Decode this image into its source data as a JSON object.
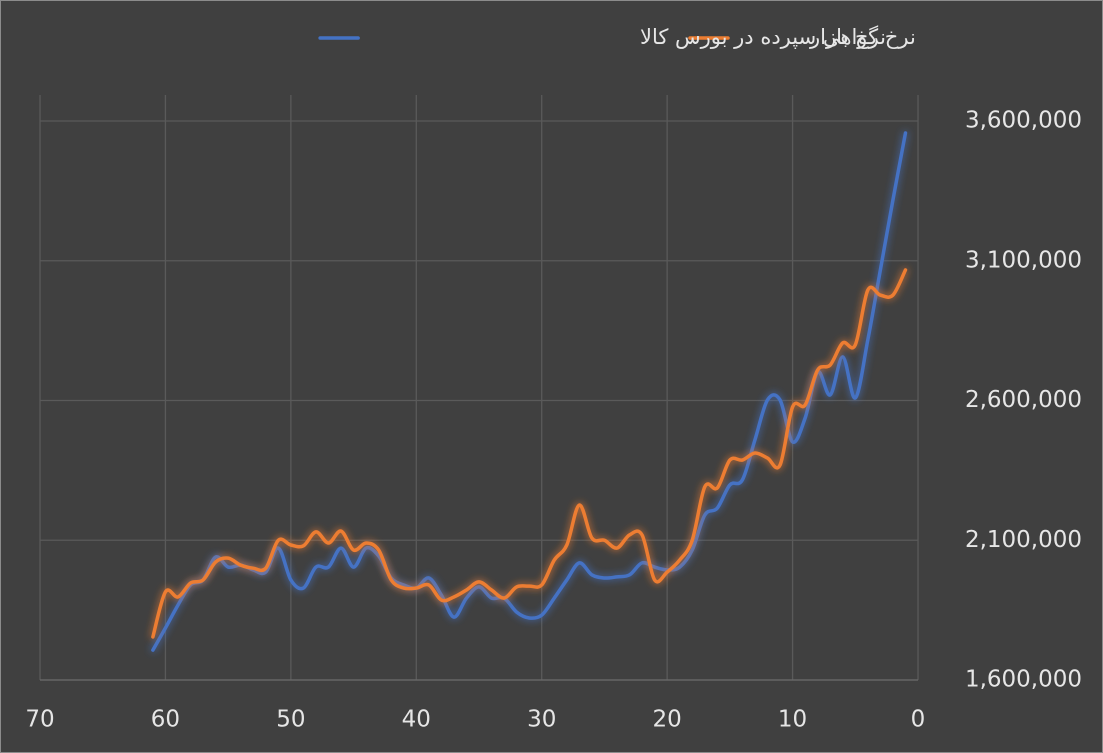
{
  "chart_data": {
    "type": "line",
    "x": [
      61,
      60,
      59,
      58,
      57,
      56,
      55,
      54,
      53,
      52,
      51,
      50,
      49,
      48,
      47,
      46,
      45,
      44,
      43,
      42,
      41,
      40,
      39,
      38,
      37,
      36,
      35,
      34,
      33,
      32,
      31,
      30,
      29,
      28,
      27,
      26,
      25,
      24,
      23,
      22,
      21,
      20,
      19,
      18,
      17,
      16,
      15,
      14,
      13,
      12,
      11,
      10,
      9,
      8,
      7,
      6,
      5,
      4,
      3,
      2,
      1
    ],
    "series": [
      {
        "name": "نرخ بازار",
        "color": "#ed7d31",
        "values": [
          1754000,
          1915000,
          1897000,
          1947000,
          1958000,
          2022000,
          2036000,
          2011000,
          2000000,
          2000000,
          2100000,
          2083000,
          2080000,
          2130000,
          2090000,
          2133000,
          2065000,
          2090000,
          2065000,
          1958000,
          1929000,
          1929000,
          1940000,
          1886000,
          1897000,
          1922000,
          1951000,
          1922000,
          1893000,
          1933000,
          1936000,
          1940000,
          2029000,
          2083000,
          2226000,
          2108000,
          2100000,
          2072000,
          2119000,
          2119000,
          1958000,
          1986000,
          2029000,
          2100000,
          2291000,
          2287000,
          2387000,
          2387000,
          2412000,
          2394000,
          2369000,
          2577000,
          2584000,
          2709000,
          2727000,
          2806000,
          2799000,
          2995000,
          2977000,
          2977000,
          3067000
        ]
      },
      {
        "name": "نرخ گواهی سپرده در بورس کالا",
        "color": "#4472c4",
        "values": [
          1707000,
          1786000,
          1868000,
          1940000,
          1958000,
          2040000,
          2004000,
          2011000,
          1994000,
          1986000,
          2072000,
          1958000,
          1929000,
          2004000,
          2004000,
          2072000,
          2004000,
          2072000,
          2044000,
          1965000,
          1940000,
          1929000,
          1965000,
          1904000,
          1825000,
          1893000,
          1933000,
          1893000,
          1893000,
          1843000,
          1822000,
          1832000,
          1893000,
          1958000,
          2019000,
          1976000,
          1965000,
          1969000,
          1976000,
          2019000,
          2004000,
          1994000,
          2004000,
          2065000,
          2190000,
          2215000,
          2298000,
          2316000,
          2459000,
          2602000,
          2602000,
          2452000,
          2537000,
          2702000,
          2620000,
          2756000,
          2609000,
          2817000,
          3067000,
          3317000,
          3557000
        ]
      }
    ],
    "xlim": [
      70,
      0
    ],
    "xticks": [
      70,
      60,
      50,
      40,
      30,
      20,
      10,
      0
    ],
    "ylim": [
      1600000,
      3600000
    ],
    "yticks": [
      {
        "value": 1600000,
        "label": "1,600,000"
      },
      {
        "value": 2100000,
        "label": "2,100,000"
      },
      {
        "value": 2600000,
        "label": "2,600,000"
      },
      {
        "value": 3100000,
        "label": "3,100,000"
      },
      {
        "value": 3600000,
        "label": "3,600,000"
      }
    ],
    "grid": true
  }
}
